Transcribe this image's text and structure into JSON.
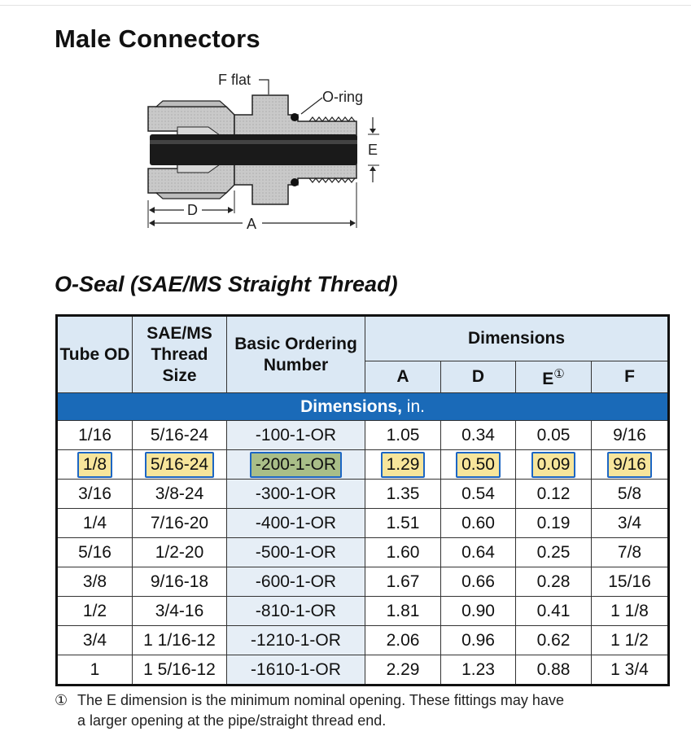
{
  "title": "Male Connectors",
  "diagram": {
    "labels": {
      "f_flat": "F flat",
      "o_ring": "O-ring",
      "e": "E",
      "d": "D",
      "a": "A"
    }
  },
  "subtitle": "O-Seal (SAE/MS Straight Thread)",
  "table": {
    "headers": {
      "tube_od": "Tube OD",
      "thread_size": "SAE/MS Thread Size",
      "ordering_number": "Basic Ordering Number",
      "dimensions": "Dimensions",
      "a": "A",
      "d": "D",
      "e": "E",
      "e_mark": "①",
      "f": "F"
    },
    "band": {
      "label": "Dimensions,",
      "unit": "in."
    },
    "rows": [
      [
        "1/16",
        "5/16-24",
        "-100-1-OR",
        "1.05",
        "0.34",
        "0.05",
        "9/16"
      ],
      [
        "1/8",
        "5/16-24",
        "-200-1-OR",
        "1.29",
        "0.50",
        "0.09",
        "9/16"
      ],
      [
        "3/16",
        "3/8-24",
        "-300-1-OR",
        "1.35",
        "0.54",
        "0.12",
        "5/8"
      ],
      [
        "1/4",
        "7/16-20",
        "-400-1-OR",
        "1.51",
        "0.60",
        "0.19",
        "3/4"
      ],
      [
        "5/16",
        "1/2-20",
        "-500-1-OR",
        "1.60",
        "0.64",
        "0.25",
        "7/8"
      ],
      [
        "3/8",
        "9/16-18",
        "-600-1-OR",
        "1.67",
        "0.66",
        "0.28",
        "15/16"
      ],
      [
        "1/2",
        "3/4-16",
        "-810-1-OR",
        "1.81",
        "0.90",
        "0.41",
        "1 1/8"
      ],
      [
        "3/4",
        "1 1/16-12",
        "-1210-1-OR",
        "2.06",
        "0.96",
        "0.62",
        "1 1/2"
      ],
      [
        "1",
        "1 5/16-12",
        "-1610-1-OR",
        "2.29",
        "1.23",
        "0.88",
        "1 3/4"
      ]
    ]
  },
  "footnote": {
    "mark": "①",
    "line1": "The E dimension is the minimum nominal opening. These fittings may have",
    "line2": "a larger opening at the pipe/straight thread end."
  },
  "colors": {
    "header_bg": "#dbe8f4",
    "band_bg": "#1a6ab8",
    "highlight_fill": "#f7e59b",
    "highlight_border": "#1c66c4",
    "ordering_highlight_fill": "#a9be88"
  }
}
